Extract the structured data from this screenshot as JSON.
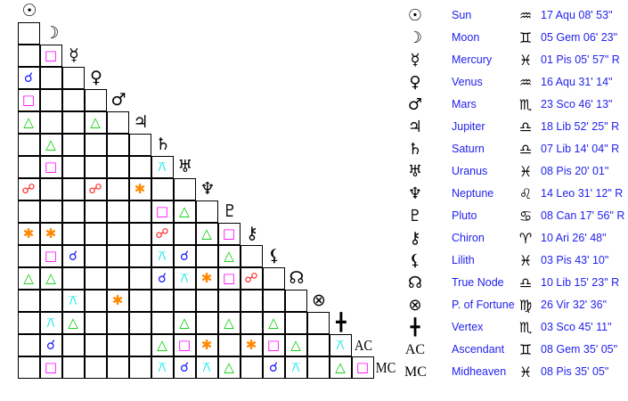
{
  "planets": [
    {
      "name": "Sun",
      "glyph": "☉",
      "sign_icon": "aquarius-icon",
      "sign_glyph": "♒",
      "position": "17 Aqu 08' 53\""
    },
    {
      "name": "Moon",
      "glyph": "☽",
      "sign_icon": "gemini-icon",
      "sign_glyph": "♊",
      "position": "05 Gem 06' 23\""
    },
    {
      "name": "Mercury",
      "glyph": "☿",
      "sign_icon": "pisces-icon",
      "sign_glyph": "♓",
      "position": "01 Pis 05' 57\" R"
    },
    {
      "name": "Venus",
      "glyph": "♀",
      "sign_icon": "aquarius-icon",
      "sign_glyph": "♒",
      "position": "16 Aqu 31' 14\""
    },
    {
      "name": "Mars",
      "glyph": "♂",
      "sign_icon": "scorpio-icon",
      "sign_glyph": "♏",
      "position": "23 Sco 46' 13\""
    },
    {
      "name": "Jupiter",
      "glyph": "♃",
      "sign_icon": "libra-icon",
      "sign_glyph": "♎",
      "position": "18 Lib 52' 25\" R"
    },
    {
      "name": "Saturn",
      "glyph": "♄",
      "sign_icon": "libra-icon",
      "sign_glyph": "♎",
      "position": "07 Lib 14' 04\" R"
    },
    {
      "name": "Uranus",
      "glyph": "♅",
      "sign_icon": "pisces-icon",
      "sign_glyph": "♓",
      "position": "08 Pis 20' 01\""
    },
    {
      "name": "Neptune",
      "glyph": "♆",
      "sign_icon": "leo-icon",
      "sign_glyph": "♌",
      "position": "14 Leo 31' 12\" R"
    },
    {
      "name": "Pluto",
      "glyph": "♇",
      "sign_icon": "cancer-icon",
      "sign_glyph": "♋",
      "position": "08 Can 17' 56\" R"
    },
    {
      "name": "Chiron",
      "glyph": "⚷",
      "sign_icon": "aries-icon",
      "sign_glyph": "♈",
      "position": "10 Ari 26' 48\""
    },
    {
      "name": "Lilith",
      "glyph": "⚸",
      "sign_icon": "pisces-icon",
      "sign_glyph": "♓",
      "position": "03 Pis 43' 10\""
    },
    {
      "name": "True Node",
      "glyph": "☊",
      "sign_icon": "libra-icon",
      "sign_glyph": "♎",
      "position": "10 Lib 15' 23\" R"
    },
    {
      "name": "P. of Fortune",
      "glyph": "⊗",
      "sign_icon": "virgo-icon",
      "sign_glyph": "♍",
      "position": "26 Vir 32' 36\""
    },
    {
      "name": "Vertex",
      "glyph": "╋",
      "sign_icon": "scorpio-icon",
      "sign_glyph": "♏",
      "position": "03 Sco 45' 11\""
    },
    {
      "name": "Ascendant",
      "glyph": "AC",
      "sign_icon": "gemini-icon",
      "sign_glyph": "♊",
      "position": "08 Gem 35' 05\""
    },
    {
      "name": "Midheaven",
      "glyph": "MC",
      "sign_icon": "pisces-icon",
      "sign_glyph": "♓",
      "position": "08 Pis 35' 05\""
    }
  ],
  "aspect_types": {
    "conjunction": {
      "glyph": "☌",
      "color": "#1a1aff"
    },
    "opposition": {
      "glyph": "☍",
      "color": "#ff1a1a"
    },
    "square": {
      "glyph": "□",
      "color": "#ff00ff"
    },
    "trine": {
      "glyph": "△",
      "color": "#00cc00"
    },
    "sextile": {
      "glyph": "✱",
      "color": "#ff8800"
    },
    "quincunx": {
      "glyph": "⚻",
      "color": "#00e5e5"
    }
  },
  "aspects": [
    [
      "Mercury",
      "Moon",
      "square"
    ],
    [
      "Venus",
      "Sun",
      "conjunction"
    ],
    [
      "Mars",
      "Sun",
      "square"
    ],
    [
      "Jupiter",
      "Sun",
      "trine"
    ],
    [
      "Jupiter",
      "Venus",
      "trine"
    ],
    [
      "Saturn",
      "Moon",
      "trine"
    ],
    [
      "Uranus",
      "Moon",
      "square"
    ],
    [
      "Uranus",
      "Saturn",
      "quincunx"
    ],
    [
      "Neptune",
      "Sun",
      "opposition"
    ],
    [
      "Neptune",
      "Venus",
      "opposition"
    ],
    [
      "Neptune",
      "Jupiter",
      "sextile"
    ],
    [
      "Pluto",
      "Saturn",
      "square"
    ],
    [
      "Pluto",
      "Uranus",
      "trine"
    ],
    [
      "Chiron",
      "Sun",
      "sextile"
    ],
    [
      "Chiron",
      "Moon",
      "sextile"
    ],
    [
      "Chiron",
      "Saturn",
      "opposition"
    ],
    [
      "Chiron",
      "Neptune",
      "trine"
    ],
    [
      "Chiron",
      "Pluto",
      "square"
    ],
    [
      "Lilith",
      "Moon",
      "square"
    ],
    [
      "Lilith",
      "Mercury",
      "conjunction"
    ],
    [
      "Lilith",
      "Saturn",
      "quincunx"
    ],
    [
      "Lilith",
      "Uranus",
      "conjunction"
    ],
    [
      "Lilith",
      "Pluto",
      "trine"
    ],
    [
      "True Node",
      "Sun",
      "trine"
    ],
    [
      "True Node",
      "Moon",
      "trine"
    ],
    [
      "True Node",
      "Saturn",
      "conjunction"
    ],
    [
      "True Node",
      "Uranus",
      "quincunx"
    ],
    [
      "True Node",
      "Neptune",
      "sextile"
    ],
    [
      "True Node",
      "Pluto",
      "square"
    ],
    [
      "True Node",
      "Chiron",
      "opposition"
    ],
    [
      "P. of Fortune",
      "Mercury",
      "quincunx"
    ],
    [
      "P. of Fortune",
      "Mars",
      "sextile"
    ],
    [
      "Vertex",
      "Moon",
      "quincunx"
    ],
    [
      "Vertex",
      "Mercury",
      "trine"
    ],
    [
      "Vertex",
      "Uranus",
      "trine"
    ],
    [
      "Vertex",
      "Pluto",
      "trine"
    ],
    [
      "Vertex",
      "Lilith",
      "trine"
    ],
    [
      "Ascendant",
      "Moon",
      "conjunction"
    ],
    [
      "Ascendant",
      "Saturn",
      "trine"
    ],
    [
      "Ascendant",
      "Uranus",
      "square"
    ],
    [
      "Ascendant",
      "Neptune",
      "sextile"
    ],
    [
      "Ascendant",
      "Chiron",
      "sextile"
    ],
    [
      "Ascendant",
      "Lilith",
      "square"
    ],
    [
      "Ascendant",
      "True Node",
      "trine"
    ],
    [
      "Ascendant",
      "Vertex",
      "quincunx"
    ],
    [
      "Midheaven",
      "Moon",
      "square"
    ],
    [
      "Midheaven",
      "Saturn",
      "quincunx"
    ],
    [
      "Midheaven",
      "Uranus",
      "conjunction"
    ],
    [
      "Midheaven",
      "Neptune",
      "quincunx"
    ],
    [
      "Midheaven",
      "Pluto",
      "trine"
    ],
    [
      "Midheaven",
      "Lilith",
      "conjunction"
    ],
    [
      "Midheaven",
      "True Node",
      "quincunx"
    ],
    [
      "Midheaven",
      "Vertex",
      "trine"
    ],
    [
      "Midheaven",
      "Ascendant",
      "square"
    ]
  ]
}
